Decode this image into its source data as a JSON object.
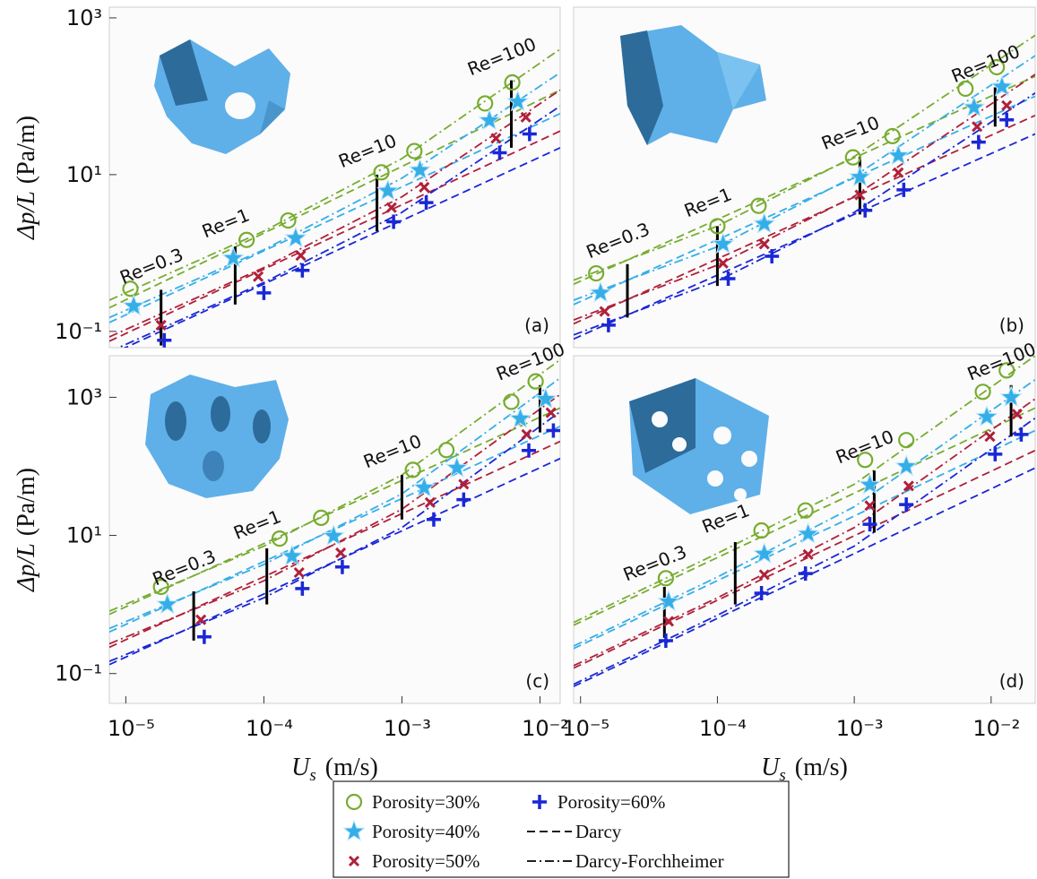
{
  "chart_data": [
    {
      "type": "line",
      "xscale": "log",
      "yscale": "log",
      "panel_label": "(a)",
      "xlim": [
        7.6e-06,
        0.014
      ],
      "ylim": [
        0.062,
        1370
      ],
      "yticks": [
        {
          "value": 1000,
          "label": "10³"
        },
        {
          "value": 10,
          "label": "10¹"
        },
        {
          "value": 0.1,
          "label": "10⁻¹"
        }
      ],
      "y_label": {
        "symbol": "Δp/L",
        "unit": "(Pa/m)"
      },
      "series": [
        {
          "x": [
            1.08e-05,
            7.5e-05,
            0.00015,
            0.00071,
            0.00123,
            0.004,
            0.0063
          ],
          "values": [
            0.35,
            1.47,
            2.6,
            10.7,
            20,
            81,
            150
          ],
          "darcy": {
            "x": [
              7.6e-06,
              0.014
            ],
            "values": [
              0.2,
              120
            ]
          },
          "forchheimer": {
            "x": [
              7.6e-06,
              0.0001,
              0.001,
              0.014
            ],
            "values": [
              0.25,
              1.9,
              16,
              400
            ]
          }
        },
        {
          "x": [
            1.14e-05,
            6e-05,
            0.00017,
            0.00079,
            0.00135,
            0.0043,
            0.0069
          ],
          "values": [
            0.21,
            0.86,
            1.55,
            6.2,
            11.4,
            49,
            85
          ],
          "darcy": {
            "x": [
              7.6e-06,
              0.014
            ],
            "values": [
              0.13,
              60
            ]
          },
          "forchheimer": {
            "x": [
              7.6e-06,
              0.0001,
              0.001,
              0.014
            ],
            "values": [
              0.15,
              1.1,
              9,
              200
            ]
          }
        },
        {
          "x": [
            1.8e-05,
            9.1e-05,
            0.000185,
            0.00084,
            0.00145,
            0.0048,
            0.0079
          ],
          "values": [
            0.12,
            0.5,
            0.93,
            3.8,
            6.9,
            29,
            54
          ],
          "darcy": {
            "x": [
              7.6e-06,
              0.014
            ],
            "values": [
              0.075,
              36
            ]
          },
          "forchheimer": {
            "x": [
              7.6e-06,
              0.0001,
              0.001,
              0.014
            ],
            "values": [
              0.085,
              0.65,
              5.2,
              120
            ]
          }
        },
        {
          "x": [
            1.9e-05,
            0.0001,
            0.00019,
            0.00087,
            0.0015,
            0.0051,
            0.0084
          ],
          "values": [
            0.077,
            0.31,
            0.6,
            2.5,
            4.4,
            19,
            33
          ],
          "darcy": {
            "x": [
              7.6e-06,
              0.014
            ],
            "values": [
              0.05,
              22
            ]
          },
          "forchheimer": {
            "x": [
              7.6e-06,
              0.0001,
              0.001,
              0.014
            ],
            "values": [
              0.055,
              0.42,
              3.3,
              75
            ]
          }
        }
      ],
      "re_lines": [
        {
          "label": "Re=0.3",
          "x": [
            1.8e-05,
            1.8e-05
          ],
          "values": [
            0.34,
            0.066
          ]
        },
        {
          "label": "Re=1",
          "x": [
            6.2e-05,
            6.2e-05
          ],
          "values": [
            1.2,
            0.22
          ]
        },
        {
          "label": "Re=10",
          "x": [
            0.00066,
            0.00066
          ],
          "values": [
            10,
            1.9
          ]
        },
        {
          "label": "Re=100",
          "x": [
            0.0062,
            0.0062
          ],
          "values": [
            160,
            22
          ]
        }
      ]
    },
    {
      "type": "line",
      "xscale": "log",
      "yscale": "log",
      "panel_label": "(b)",
      "xlim": [
        8.9e-06,
        0.021
      ],
      "ylim": [
        0.062,
        1370
      ],
      "series": [
        {
          "x": [
            1.3e-05,
            0.0001,
            0.0002,
            0.00098,
            0.0019,
            0.0065,
            0.011
          ],
          "values": [
            0.55,
            2.2,
            4,
            16.6,
            31,
            125,
            235
          ],
          "darcy": {
            "x": [
              8.9e-06,
              0.021
            ],
            "values": [
              0.4,
              180
            ]
          },
          "forchheimer": {
            "x": [
              8.9e-06,
              0.0001,
              0.001,
              0.021
            ],
            "values": [
              0.45,
              2.2,
              17,
              600
            ]
          }
        },
        {
          "x": [
            1.4e-05,
            0.00011,
            0.00022,
            0.0011,
            0.0021,
            0.0075,
            0.012
          ],
          "values": [
            0.31,
            1.3,
            2.35,
            9.3,
            17.5,
            72,
            132
          ],
          "darcy": {
            "x": [
              8.9e-06,
              0.021
            ],
            "values": [
              0.22,
              100
            ]
          },
          "forchheimer": {
            "x": [
              8.9e-06,
              0.0001,
              0.001,
              0.021
            ],
            "values": [
              0.25,
              1.2,
              9.5,
              330
            ]
          }
        },
        {
          "x": [
            1.5e-05,
            0.00011,
            0.00022,
            0.0011,
            0.0021,
            0.0079,
            0.013
          ],
          "values": [
            0.18,
            0.74,
            1.3,
            5.5,
            10.6,
            41,
            76
          ],
          "darcy": {
            "x": [
              8.9e-06,
              0.021
            ],
            "values": [
              0.125,
              57
            ]
          },
          "forchheimer": {
            "x": [
              8.9e-06,
              0.0001,
              0.001,
              0.021
            ],
            "values": [
              0.14,
              0.7,
              5.3,
              190
            ]
          }
        },
        {
          "x": [
            1.6e-05,
            0.00012,
            0.00025,
            0.0012,
            0.0023,
            0.0081,
            0.013
          ],
          "values": [
            0.12,
            0.47,
            0.91,
            3.5,
            6.4,
            26,
            50
          ],
          "darcy": {
            "x": [
              8.9e-06,
              0.021
            ],
            "values": [
              0.08,
              33
            ]
          },
          "forchheimer": {
            "x": [
              8.9e-06,
              0.0001,
              0.001,
              0.021
            ],
            "values": [
              0.09,
              0.44,
              3.3,
              110
            ]
          }
        }
      ],
      "re_lines": [
        {
          "label": "Re=0.3",
          "x": [
            2.2e-05,
            2.2e-05
          ],
          "values": [
            0.72,
            0.15
          ]
        },
        {
          "label": "Re=1",
          "x": [
            0.0001,
            0.0001
          ],
          "values": [
            2.2,
            0.38
          ]
        },
        {
          "label": "Re=10",
          "x": [
            0.0011,
            0.0011
          ],
          "values": [
            17,
            3.1
          ]
        },
        {
          "label": "Re=100",
          "x": [
            0.0107,
            0.0107
          ],
          "values": [
            130,
            41
          ]
        }
      ]
    },
    {
      "type": "line",
      "xscale": "log",
      "yscale": "log",
      "panel_label": "(c)",
      "xlim": [
        7.6e-06,
        0.014
      ],
      "ylim": [
        0.037,
        4000
      ],
      "xticks": [
        {
          "value": 1e-05,
          "label": "10⁻⁵"
        },
        {
          "value": 0.0001,
          "label": "10⁻⁴"
        },
        {
          "value": 0.001,
          "label": "10⁻³"
        },
        {
          "value": 0.01,
          "label": "10⁻²"
        }
      ],
      "yticks": [
        {
          "value": 1000,
          "label": "10³"
        },
        {
          "value": 10,
          "label": "10¹"
        },
        {
          "value": 0.1,
          "label": "10⁻¹"
        }
      ],
      "x_label": {
        "symbol": "U",
        "subscript": "s",
        "unit": "(m/s)"
      },
      "y_label": {
        "symbol": "Δp/L",
        "unit": "(Pa/m)"
      },
      "series": [
        {
          "x": [
            1.8e-05,
            0.00013,
            0.00026,
            0.0012,
            0.0021,
            0.0062,
            0.0093
          ],
          "values": [
            1.8,
            9,
            18,
            89,
            172,
            860,
            1700
          ],
          "darcy": {
            "x": [
              7.6e-06,
              0.014
            ],
            "values": [
              0.72,
              700
            ]
          },
          "forchheimer": {
            "x": [
              7.6e-06,
              0.0001,
              0.001,
              0.014
            ],
            "values": [
              0.8,
              7,
              75,
              3500
            ]
          }
        },
        {
          "x": [
            2e-05,
            0.00016,
            0.00032,
            0.00145,
            0.0025,
            0.0072,
            0.011
          ],
          "values": [
            1.0,
            5,
            9.8,
            49,
            95,
            490,
            940
          ],
          "darcy": {
            "x": [
              7.6e-06,
              0.014
            ],
            "values": [
              0.4,
              380
            ]
          },
          "forchheimer": {
            "x": [
              7.6e-06,
              0.0001,
              0.001,
              0.014
            ],
            "values": [
              0.45,
              3.8,
              40,
              1900
            ]
          }
        },
        {
          "x": [
            3.5e-05,
            0.00018,
            0.00036,
            0.0016,
            0.0028,
            0.008,
            0.012
          ],
          "values": [
            0.6,
            2.9,
            5.6,
            30,
            55,
            290,
            600
          ],
          "darcy": {
            "x": [
              7.6e-06,
              0.014
            ],
            "values": [
              0.24,
              230
            ]
          },
          "forchheimer": {
            "x": [
              7.6e-06,
              0.0001,
              0.001,
              0.014
            ],
            "values": [
              0.27,
              2.2,
              24,
              1100
            ]
          }
        },
        {
          "x": [
            3.7e-05,
            0.00019,
            0.00037,
            0.0017,
            0.0028,
            0.0083,
            0.0125
          ],
          "values": [
            0.34,
            1.7,
            3.5,
            17,
            33,
            170,
            330
          ],
          "darcy": {
            "x": [
              7.6e-06,
              0.014
            ],
            "values": [
              0.135,
              130
            ]
          },
          "forchheimer": {
            "x": [
              7.6e-06,
              0.0001,
              0.001,
              0.014
            ],
            "values": [
              0.15,
              1.25,
              13,
              620
            ]
          }
        }
      ],
      "re_lines": [
        {
          "label": "Re=0.3",
          "x": [
            3.1e-05,
            3.1e-05
          ],
          "values": [
            1.55,
            0.3
          ]
        },
        {
          "label": "Re=1",
          "x": [
            0.000105,
            0.000105
          ],
          "values": [
            6.5,
            1
          ]
        },
        {
          "label": "Re=10",
          "x": [
            0.001,
            0.001
          ],
          "values": [
            75,
            17
          ]
        },
        {
          "label": "Re=100",
          "x": [
            0.01,
            0.01
          ],
          "values": [
            1500,
            310
          ]
        }
      ]
    },
    {
      "type": "line",
      "xscale": "log",
      "yscale": "log",
      "panel_label": "(d)",
      "xlim": [
        8.9e-06,
        0.021
      ],
      "ylim": [
        0.037,
        4000
      ],
      "xticks": [
        {
          "value": 1e-05,
          "label": "10⁻⁵"
        },
        {
          "value": 0.0001,
          "label": "10⁻⁴"
        },
        {
          "value": 0.001,
          "label": "10⁻³"
        },
        {
          "value": 0.01,
          "label": "10⁻²"
        }
      ],
      "x_label": {
        "symbol": "U",
        "subscript": "s",
        "unit": "(m/s)"
      },
      "series": [
        {
          "x": [
            4.2e-05,
            0.00021,
            0.00044,
            0.0012,
            0.0024,
            0.0087,
            0.013
          ],
          "values": [
            2.4,
            11.8,
            23,
            124,
            240,
            1200,
            2450
          ],
          "darcy": {
            "x": [
              8.9e-06,
              0.021
            ],
            "values": [
              0.5,
              700
            ]
          },
          "forchheimer": {
            "x": [
              8.9e-06,
              0.0001,
              0.001,
              0.021
            ],
            "values": [
              0.55,
              5.5,
              55,
              4000
            ]
          }
        },
        {
          "x": [
            4.4e-05,
            0.00022,
            0.00046,
            0.0013,
            0.0024,
            0.0093,
            0.014
          ],
          "values": [
            1.1,
            5.4,
            10.5,
            54,
            100,
            520,
            1000
          ],
          "darcy": {
            "x": [
              8.9e-06,
              0.021
            ],
            "values": [
              0.23,
              330
            ]
          },
          "forchheimer": {
            "x": [
              8.9e-06,
              0.0001,
              0.001,
              0.021
            ],
            "values": [
              0.25,
              2.5,
              26,
              1800
            ]
          }
        },
        {
          "x": [
            4.4e-05,
            0.00022,
            0.00046,
            0.0013,
            0.0025,
            0.0098,
            0.0155
          ],
          "values": [
            0.57,
            2.7,
            5.3,
            27,
            52,
            270,
            570
          ],
          "darcy": {
            "x": [
              8.9e-06,
              0.021
            ],
            "values": [
              0.12,
              170
            ]
          },
          "forchheimer": {
            "x": [
              8.9e-06,
              0.0001,
              0.001,
              0.021
            ],
            "values": [
              0.13,
              1.25,
              13,
              950
            ]
          }
        },
        {
          "x": [
            4.2e-05,
            0.00021,
            0.00044,
            0.0013,
            0.0024,
            0.0107,
            0.0166
          ],
          "values": [
            0.3,
            1.46,
            2.8,
            14.5,
            28,
            150,
            290
          ],
          "darcy": {
            "x": [
              8.9e-06,
              0.021
            ],
            "values": [
              0.065,
              95
            ]
          },
          "forchheimer": {
            "x": [
              8.9e-06,
              0.0001,
              0.001,
              0.021
            ],
            "values": [
              0.07,
              0.7,
              7,
              500
            ]
          }
        }
      ],
      "re_lines": [
        {
          "label": "Re=0.3",
          "x": [
            4.1e-05,
            4.1e-05
          ],
          "values": [
            1.8,
            0.33
          ]
        },
        {
          "label": "Re=1",
          "x": [
            0.000135,
            0.000135
          ],
          "values": [
            8,
            1
          ]
        },
        {
          "label": "Re=10",
          "x": [
            0.0014,
            0.0014
          ],
          "values": [
            87,
            11
          ]
        },
        {
          "label": "Re=100",
          "x": [
            0.014,
            0.014
          ],
          "values": [
            1500,
            270
          ]
        }
      ]
    }
  ],
  "legend": {
    "entries": [
      {
        "name": "Porosity=30%",
        "marker": "circle",
        "color": "#77ac30"
      },
      {
        "name": "Porosity=40%",
        "marker": "star",
        "color": "#35aee8"
      },
      {
        "name": "Porosity=50%",
        "marker": "x",
        "color": "#b0203a"
      },
      {
        "name": "Porosity=60%",
        "marker": "plus",
        "color": "#1a27d6"
      },
      {
        "name": "Darcy",
        "line": "dashed",
        "color": "#000000"
      },
      {
        "name": "Darcy-Forchheimer",
        "line": "dashdot",
        "color": "#000000"
      }
    ]
  }
}
